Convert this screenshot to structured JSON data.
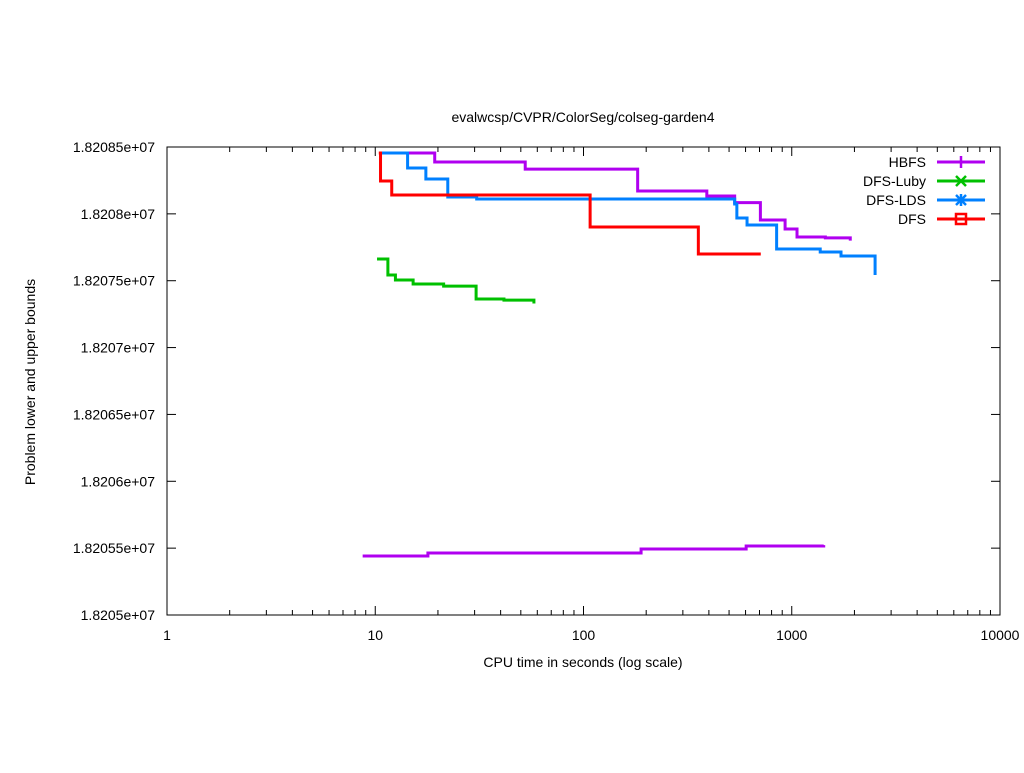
{
  "chart_data": {
    "type": "line",
    "title": "evalwcsp/CVPR/ColorSeg/colseg-garden4",
    "xlabel": "CPU time in seconds (log scale)",
    "ylabel": "Problem lower and upper bounds",
    "xscale": "log",
    "xlim": [
      1,
      10000
    ],
    "ylim": [
      18205000,
      18208500
    ],
    "xticks": [
      1,
      10,
      100,
      1000,
      10000
    ],
    "xtick_labels": [
      "1",
      "10",
      "100",
      "1000",
      "10000"
    ],
    "yticks": [
      18205000,
      18205500,
      18206000,
      18206500,
      18207000,
      18207500,
      18208000,
      18208500
    ],
    "ytick_labels": [
      "1.8205e+07",
      "1.82055e+07",
      "1.8206e+07",
      "1.82065e+07",
      "1.8207e+07",
      "1.82075e+07",
      "1.8208e+07",
      "1.82085e+07"
    ],
    "legend_position": "top-right",
    "grid": false,
    "series": [
      {
        "name": "HBFS",
        "color": "#b000f0",
        "marker": "plus",
        "step": true,
        "segments": [
          {
            "role": "upper",
            "points": [
              [
                10.5,
                18208455
              ],
              [
                19.3,
                18208388
              ],
              [
                52.5,
                18208335
              ],
              [
                182,
                18208171
              ],
              [
                391,
                18208134
              ],
              [
                532,
                18208084
              ],
              [
                707,
                18207954
              ],
              [
                929,
                18207887
              ],
              [
                1060,
                18207827
              ],
              [
                1450,
                18207820
              ],
              [
                1910,
                18207800
              ]
            ]
          },
          {
            "role": "lower",
            "points": [
              [
                8.7,
                18205441
              ],
              [
                17.9,
                18205464
              ],
              [
                189,
                18205494
              ],
              [
                604,
                18205516
              ],
              [
                1424,
                18205523
              ]
            ]
          }
        ]
      },
      {
        "name": "DFS-Luby",
        "color": "#00c000",
        "marker": "cross",
        "step": true,
        "segments": [
          {
            "role": "upper",
            "points": [
              [
                10.2,
                18207662
              ],
              [
                11.5,
                18207543
              ],
              [
                12.5,
                18207505
              ],
              [
                15.2,
                18207475
              ],
              [
                21.3,
                18207460
              ],
              [
                30.5,
                18207363
              ],
              [
                41.5,
                18207355
              ],
              [
                57.8,
                18207330
              ]
            ]
          }
        ]
      },
      {
        "name": "DFS-LDS",
        "color": "#0080ff",
        "marker": "star",
        "step": true,
        "segments": [
          {
            "role": "upper",
            "points": [
              [
                10.6,
                18208455
              ],
              [
                14.3,
                18208343
              ],
              [
                17.5,
                18208261
              ],
              [
                22.3,
                18208126
              ],
              [
                30.7,
                18208111
              ],
              [
                532,
                18208074
              ],
              [
                545,
                18207969
              ],
              [
                610,
                18207917
              ],
              [
                846,
                18207737
              ],
              [
                1370,
                18207715
              ],
              [
                1724,
                18207685
              ],
              [
                2513,
                18207543
              ]
            ]
          }
        ]
      },
      {
        "name": "DFS",
        "color": "#ff0000",
        "marker": "square",
        "step": true,
        "segments": [
          {
            "role": "upper",
            "points": [
              [
                10.4,
                18208455
              ],
              [
                10.6,
                18208246
              ],
              [
                12.0,
                18208141
              ],
              [
                107.6,
                18207902
              ],
              [
                356,
                18207700
              ],
              [
                710,
                18207700
              ]
            ]
          }
        ]
      }
    ]
  }
}
